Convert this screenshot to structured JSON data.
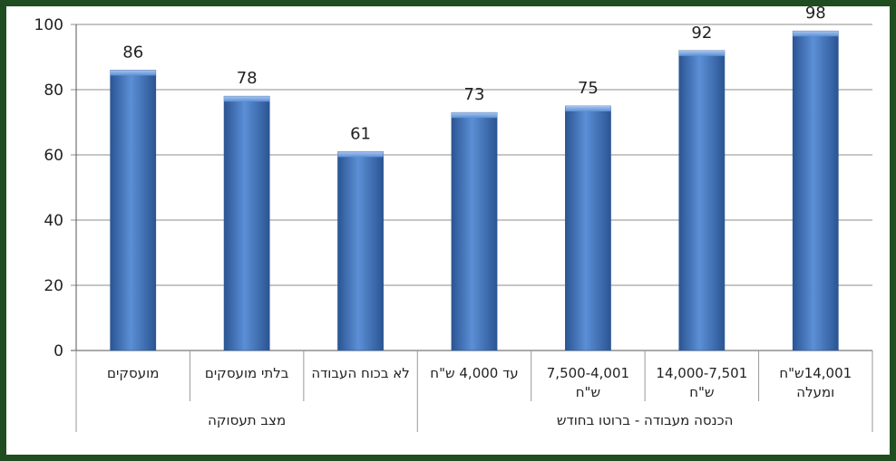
{
  "chart_data": {
    "type": "bar",
    "categories": [
      [
        "מועסקים"
      ],
      [
        "בלתי מועסקים"
      ],
      [
        "לא בכוח העבודה"
      ],
      [
        "עד 4,000  ש\"ח"
      ],
      [
        "7,500-4,001",
        "ש\"ח"
      ],
      [
        "14,000-7,501",
        "ש\"ח"
      ],
      [
        "14,001ש\"ח",
        "ומעלה"
      ]
    ],
    "values": [
      86,
      78,
      61,
      73,
      75,
      92,
      98
    ],
    "groups": [
      {
        "label": "מצב תעסוקה",
        "count": 3
      },
      {
        "label": "הכנסה מעבודה - ברוטו בחודש",
        "count": 4
      }
    ],
    "yticks": [
      0,
      20,
      40,
      60,
      80,
      100
    ],
    "ylim": [
      0,
      100
    ],
    "grid": true,
    "colors": {
      "bar": "#4a7ec4",
      "bar_light": "#8fb4e6",
      "bar_dark": "#2b5593",
      "grid": "#8c8c8c",
      "frame": "#1f4d1f"
    }
  }
}
